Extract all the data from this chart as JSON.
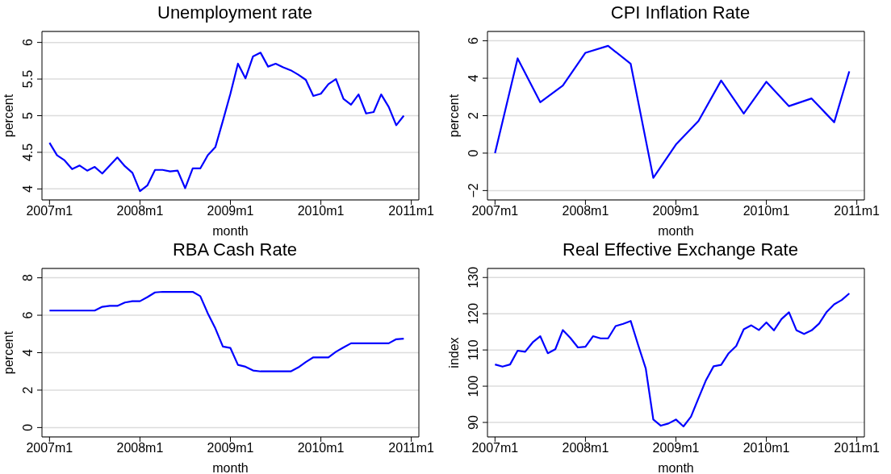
{
  "chart_data": [
    {
      "type": "line",
      "title": "Unemployment rate",
      "xlabel": "month",
      "ylabel": "percent",
      "color": "#0000ff",
      "grid": "y",
      "x": [
        "2007-01",
        "2007-02",
        "2007-03",
        "2007-04",
        "2007-05",
        "2007-06",
        "2007-07",
        "2007-08",
        "2007-09",
        "2007-10",
        "2007-11",
        "2007-12",
        "2008-01",
        "2008-02",
        "2008-03",
        "2008-04",
        "2008-05",
        "2008-06",
        "2008-07",
        "2008-08",
        "2008-09",
        "2008-10",
        "2008-11",
        "2008-12",
        "2009-01",
        "2009-02",
        "2009-03",
        "2009-04",
        "2009-05",
        "2009-06",
        "2009-07",
        "2009-08",
        "2009-09",
        "2009-10",
        "2009-11",
        "2009-12",
        "2010-01",
        "2010-02",
        "2010-03",
        "2010-04",
        "2010-05",
        "2010-06",
        "2010-07",
        "2010-08",
        "2010-09",
        "2010-10",
        "2010-11",
        "2010-12"
      ],
      "values": [
        4.63,
        4.46,
        4.39,
        4.27,
        4.32,
        4.25,
        4.3,
        4.21,
        4.32,
        4.43,
        4.31,
        4.22,
        3.97,
        4.05,
        4.26,
        4.26,
        4.24,
        4.25,
        4.01,
        4.28,
        4.28,
        4.46,
        4.57,
        4.93,
        5.3,
        5.71,
        5.51,
        5.81,
        5.86,
        5.67,
        5.71,
        5.66,
        5.62,
        5.56,
        5.49,
        5.27,
        5.3,
        5.43,
        5.5,
        5.23,
        5.15,
        5.29,
        5.03,
        5.05,
        5.29,
        5.12,
        4.87,
        5.0
      ],
      "xlim": [
        "2006-12",
        "2011-02"
      ],
      "xticks": [
        {
          "value": "2007-01",
          "label": "2007m1"
        },
        {
          "value": "2008-01",
          "label": "2008m1"
        },
        {
          "value": "2009-01",
          "label": "2009m1"
        },
        {
          "value": "2010-01",
          "label": "2010m1"
        },
        {
          "value": "2011-01",
          "label": "2011m1"
        }
      ],
      "ylim": [
        3.85,
        6.15
      ],
      "yticks": [
        4,
        4.5,
        5,
        5.5,
        6
      ]
    },
    {
      "type": "line",
      "title": "CPI Inflation Rate",
      "xlabel": "month",
      "ylabel": "percent",
      "color": "#0000ff",
      "grid": "y",
      "x": [
        "2007-01",
        "2007-04",
        "2007-07",
        "2007-10",
        "2008-01",
        "2008-04",
        "2008-07",
        "2008-10",
        "2009-01",
        "2009-04",
        "2009-07",
        "2009-10",
        "2010-01",
        "2010-04",
        "2010-07",
        "2010-10",
        "2010-12"
      ],
      "values": [
        0.0,
        5.06,
        2.72,
        3.61,
        5.36,
        5.73,
        4.77,
        -1.32,
        0.46,
        1.72,
        3.88,
        2.11,
        3.81,
        2.51,
        2.92,
        1.65,
        4.37
      ],
      "xlim": [
        "2006-12",
        "2011-02"
      ],
      "xticks": [
        {
          "value": "2007-01",
          "label": "2007m1"
        },
        {
          "value": "2008-01",
          "label": "2008m1"
        },
        {
          "value": "2009-01",
          "label": "2009m1"
        },
        {
          "value": "2010-01",
          "label": "2010m1"
        },
        {
          "value": "2011-01",
          "label": "2011m1"
        }
      ],
      "ylim": [
        -2.5,
        6.5
      ],
      "yticks": [
        {
          "value": -2,
          "label": "−2"
        },
        0,
        2,
        4,
        6
      ]
    },
    {
      "type": "line",
      "title": "RBA Cash Rate",
      "xlabel": "month",
      "ylabel": "percent",
      "color": "#0000ff",
      "grid": "y",
      "x": [
        "2007-01",
        "2007-02",
        "2007-03",
        "2007-04",
        "2007-05",
        "2007-06",
        "2007-07",
        "2007-08",
        "2007-09",
        "2007-10",
        "2007-11",
        "2007-12",
        "2008-01",
        "2008-02",
        "2008-03",
        "2008-04",
        "2008-05",
        "2008-06",
        "2008-07",
        "2008-08",
        "2008-09",
        "2008-10",
        "2008-11",
        "2008-12",
        "2009-01",
        "2009-02",
        "2009-03",
        "2009-04",
        "2009-05",
        "2009-06",
        "2009-07",
        "2009-08",
        "2009-09",
        "2009-10",
        "2009-11",
        "2009-12",
        "2010-01",
        "2010-02",
        "2010-03",
        "2010-04",
        "2010-05",
        "2010-06",
        "2010-07",
        "2010-08",
        "2010-09",
        "2010-10",
        "2010-11",
        "2010-12"
      ],
      "values": [
        6.25,
        6.25,
        6.25,
        6.25,
        6.25,
        6.25,
        6.25,
        6.45,
        6.5,
        6.5,
        6.68,
        6.75,
        6.75,
        6.97,
        7.22,
        7.25,
        7.25,
        7.25,
        7.25,
        7.25,
        7.02,
        6.1,
        5.3,
        4.33,
        4.25,
        3.35,
        3.25,
        3.05,
        3.0,
        3.0,
        3.0,
        3.0,
        3.0,
        3.21,
        3.5,
        3.75,
        3.75,
        3.75,
        4.05,
        4.28,
        4.5,
        4.5,
        4.5,
        4.5,
        4.5,
        4.5,
        4.72,
        4.75
      ],
      "xlim": [
        "2006-12",
        "2011-02"
      ],
      "xticks": [
        {
          "value": "2007-01",
          "label": "2007m1"
        },
        {
          "value": "2008-01",
          "label": "2008m1"
        },
        {
          "value": "2009-01",
          "label": "2009m1"
        },
        {
          "value": "2010-01",
          "label": "2010m1"
        },
        {
          "value": "2011-01",
          "label": "2011m1"
        }
      ],
      "ylim": [
        -0.5,
        8.5
      ],
      "yticks": [
        0,
        2,
        4,
        6,
        8
      ]
    },
    {
      "type": "line",
      "title": "Real Effective Exchange Rate",
      "xlabel": "month",
      "ylabel": "index",
      "color": "#0000ff",
      "grid": "y",
      "x": [
        "2007-01",
        "2007-02",
        "2007-03",
        "2007-04",
        "2007-05",
        "2007-06",
        "2007-07",
        "2007-08",
        "2007-09",
        "2007-10",
        "2007-11",
        "2007-12",
        "2008-01",
        "2008-02",
        "2008-03",
        "2008-04",
        "2008-05",
        "2008-06",
        "2008-07",
        "2008-08",
        "2008-09",
        "2008-10",
        "2008-11",
        "2008-12",
        "2009-01",
        "2009-02",
        "2009-03",
        "2009-04",
        "2009-05",
        "2009-06",
        "2009-07",
        "2009-08",
        "2009-09",
        "2009-10",
        "2009-11",
        "2009-12",
        "2010-01",
        "2010-02",
        "2010-03",
        "2010-04",
        "2010-05",
        "2010-06",
        "2010-07",
        "2010-08",
        "2010-09",
        "2010-10",
        "2010-11",
        "2010-12"
      ],
      "values": [
        106.0,
        105.4,
        106.0,
        109.8,
        109.5,
        112.1,
        113.8,
        109.1,
        110.2,
        115.5,
        113.3,
        110.7,
        110.9,
        113.8,
        113.2,
        113.2,
        116.6,
        117.2,
        118.0,
        111.3,
        104.9,
        90.8,
        89.1,
        89.7,
        90.8,
        88.9,
        91.6,
        96.7,
        101.7,
        105.5,
        105.9,
        109.1,
        111.1,
        115.7,
        116.8,
        115.5,
        117.6,
        115.4,
        118.5,
        120.4,
        115.4,
        114.4,
        115.4,
        117.3,
        120.5,
        122.6,
        123.8,
        125.6
      ],
      "xlim": [
        "2006-12",
        "2011-02"
      ],
      "xticks": [
        {
          "value": "2007-01",
          "label": "2007m1"
        },
        {
          "value": "2008-01",
          "label": "2008m1"
        },
        {
          "value": "2009-01",
          "label": "2009m1"
        },
        {
          "value": "2010-01",
          "label": "2010m1"
        },
        {
          "value": "2011-01",
          "label": "2011m1"
        }
      ],
      "ylim": [
        86,
        132.5
      ],
      "yticks": [
        90,
        100,
        110,
        120,
        130
      ]
    }
  ]
}
